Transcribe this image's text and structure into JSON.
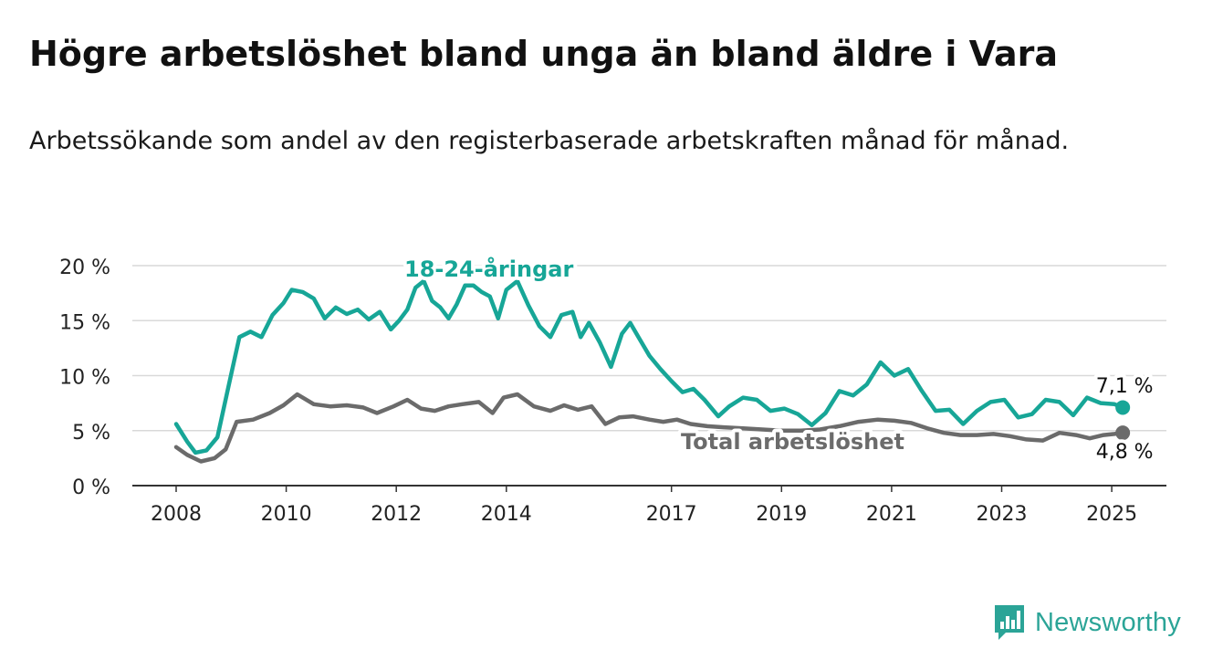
{
  "title": "Högre arbetslöshet bland unga än bland äldre i Vara",
  "subtitle": "Arbetssökande som andel av den registerbaserade arbetskraften månad för månad.",
  "brand": {
    "name": "Newsworthy"
  },
  "colors": {
    "youth": "#17a697",
    "total": "#6b6b6b",
    "grid": "#d9d9d9",
    "axis": "#333333",
    "brand": "#2ba497"
  },
  "chart_data": {
    "type": "line",
    "ylim": [
      0,
      20
    ],
    "y_ticks": [
      0,
      5,
      10,
      15,
      20
    ],
    "y_tick_labels": [
      "0 %",
      "5 %",
      "10 %",
      "15 %",
      "20 %"
    ],
    "x_ticks": [
      2008,
      2010,
      2012,
      2014,
      2017,
      2019,
      2021,
      2023,
      2025
    ],
    "x_tick_labels": [
      "2008",
      "2010",
      "2012",
      "2014",
      "2017",
      "2019",
      "2021",
      "2023",
      "2025"
    ],
    "grid": true,
    "series": [
      {
        "name": "18-24-åringar",
        "key": "youth",
        "end_label": "7,1 %",
        "points": [
          [
            2008.0,
            5.6
          ],
          [
            2008.2,
            4.0
          ],
          [
            2008.35,
            3.0
          ],
          [
            2008.55,
            3.2
          ],
          [
            2008.75,
            4.4
          ],
          [
            2008.95,
            9.0
          ],
          [
            2009.15,
            13.5
          ],
          [
            2009.35,
            14.0
          ],
          [
            2009.55,
            13.5
          ],
          [
            2009.75,
            15.5
          ],
          [
            2009.95,
            16.6
          ],
          [
            2010.1,
            17.8
          ],
          [
            2010.3,
            17.6
          ],
          [
            2010.5,
            17.0
          ],
          [
            2010.7,
            15.2
          ],
          [
            2010.9,
            16.2
          ],
          [
            2011.1,
            15.6
          ],
          [
            2011.3,
            16.0
          ],
          [
            2011.5,
            15.1
          ],
          [
            2011.7,
            15.8
          ],
          [
            2011.9,
            14.2
          ],
          [
            2012.05,
            15.0
          ],
          [
            2012.2,
            16.0
          ],
          [
            2012.35,
            18.0
          ],
          [
            2012.5,
            18.6
          ],
          [
            2012.65,
            16.8
          ],
          [
            2012.8,
            16.2
          ],
          [
            2012.95,
            15.2
          ],
          [
            2013.1,
            16.5
          ],
          [
            2013.25,
            18.2
          ],
          [
            2013.4,
            18.2
          ],
          [
            2013.55,
            17.6
          ],
          [
            2013.7,
            17.2
          ],
          [
            2013.85,
            15.2
          ],
          [
            2014.0,
            17.8
          ],
          [
            2014.2,
            18.6
          ],
          [
            2014.4,
            16.4
          ],
          [
            2014.6,
            14.5
          ],
          [
            2014.8,
            13.5
          ],
          [
            2015.0,
            15.5
          ],
          [
            2015.2,
            15.8
          ],
          [
            2015.35,
            13.5
          ],
          [
            2015.5,
            14.8
          ],
          [
            2015.7,
            13.0
          ],
          [
            2015.9,
            10.8
          ],
          [
            2016.1,
            13.8
          ],
          [
            2016.25,
            14.8
          ],
          [
            2016.4,
            13.5
          ],
          [
            2016.6,
            11.8
          ],
          [
            2016.8,
            10.6
          ],
          [
            2017.0,
            9.5
          ],
          [
            2017.2,
            8.5
          ],
          [
            2017.4,
            8.8
          ],
          [
            2017.6,
            7.8
          ],
          [
            2017.85,
            6.3
          ],
          [
            2018.05,
            7.2
          ],
          [
            2018.3,
            8.0
          ],
          [
            2018.55,
            7.8
          ],
          [
            2018.8,
            6.8
          ],
          [
            2019.05,
            7.0
          ],
          [
            2019.3,
            6.5
          ],
          [
            2019.55,
            5.5
          ],
          [
            2019.8,
            6.6
          ],
          [
            2020.05,
            8.6
          ],
          [
            2020.3,
            8.2
          ],
          [
            2020.55,
            9.2
          ],
          [
            2020.8,
            11.2
          ],
          [
            2021.05,
            10.0
          ],
          [
            2021.3,
            10.6
          ],
          [
            2021.55,
            8.6
          ],
          [
            2021.8,
            6.8
          ],
          [
            2022.05,
            6.9
          ],
          [
            2022.3,
            5.6
          ],
          [
            2022.55,
            6.8
          ],
          [
            2022.8,
            7.6
          ],
          [
            2023.05,
            7.8
          ],
          [
            2023.3,
            6.2
          ],
          [
            2023.55,
            6.5
          ],
          [
            2023.8,
            7.8
          ],
          [
            2024.05,
            7.6
          ],
          [
            2024.3,
            6.4
          ],
          [
            2024.55,
            8.0
          ],
          [
            2024.8,
            7.5
          ],
          [
            2025.05,
            7.4
          ],
          [
            2025.2,
            7.1
          ]
        ]
      },
      {
        "name": "Total arbetslöshet",
        "key": "total",
        "end_label": "4,8 %",
        "points": [
          [
            2008.0,
            3.5
          ],
          [
            2008.2,
            2.8
          ],
          [
            2008.45,
            2.2
          ],
          [
            2008.7,
            2.5
          ],
          [
            2008.9,
            3.3
          ],
          [
            2009.1,
            5.8
          ],
          [
            2009.4,
            6.0
          ],
          [
            2009.7,
            6.6
          ],
          [
            2009.95,
            7.3
          ],
          [
            2010.2,
            8.3
          ],
          [
            2010.5,
            7.4
          ],
          [
            2010.8,
            7.2
          ],
          [
            2011.1,
            7.3
          ],
          [
            2011.4,
            7.1
          ],
          [
            2011.65,
            6.6
          ],
          [
            2011.95,
            7.2
          ],
          [
            2012.2,
            7.8
          ],
          [
            2012.45,
            7.0
          ],
          [
            2012.7,
            6.8
          ],
          [
            2012.95,
            7.2
          ],
          [
            2013.2,
            7.4
          ],
          [
            2013.5,
            7.6
          ],
          [
            2013.75,
            6.6
          ],
          [
            2013.95,
            8.0
          ],
          [
            2014.2,
            8.3
          ],
          [
            2014.5,
            7.2
          ],
          [
            2014.8,
            6.8
          ],
          [
            2015.05,
            7.3
          ],
          [
            2015.3,
            6.9
          ],
          [
            2015.55,
            7.2
          ],
          [
            2015.8,
            5.6
          ],
          [
            2016.05,
            6.2
          ],
          [
            2016.3,
            6.3
          ],
          [
            2016.6,
            6.0
          ],
          [
            2016.85,
            5.8
          ],
          [
            2017.1,
            6.0
          ],
          [
            2017.35,
            5.6
          ],
          [
            2017.65,
            5.4
          ],
          [
            2017.95,
            5.3
          ],
          [
            2018.3,
            5.2
          ],
          [
            2018.65,
            5.1
          ],
          [
            2019.0,
            5.0
          ],
          [
            2019.35,
            5.0
          ],
          [
            2019.7,
            5.1
          ],
          [
            2020.05,
            5.4
          ],
          [
            2020.4,
            5.8
          ],
          [
            2020.75,
            6.0
          ],
          [
            2021.05,
            5.9
          ],
          [
            2021.35,
            5.7
          ],
          [
            2021.65,
            5.2
          ],
          [
            2021.95,
            4.8
          ],
          [
            2022.25,
            4.6
          ],
          [
            2022.55,
            4.6
          ],
          [
            2022.85,
            4.7
          ],
          [
            2023.15,
            4.5
          ],
          [
            2023.45,
            4.2
          ],
          [
            2023.75,
            4.1
          ],
          [
            2024.05,
            4.8
          ],
          [
            2024.35,
            4.6
          ],
          [
            2024.6,
            4.3
          ],
          [
            2024.85,
            4.6
          ],
          [
            2025.05,
            4.7
          ],
          [
            2025.2,
            4.8
          ]
        ]
      }
    ]
  }
}
